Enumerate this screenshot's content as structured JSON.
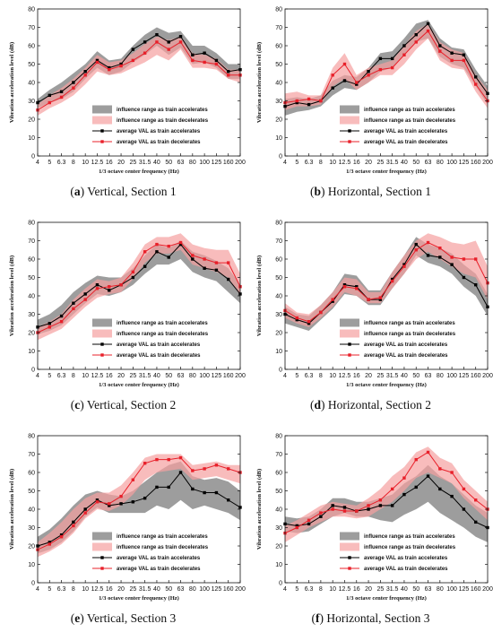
{
  "colors": {
    "accel_band": "#8c8c8c",
    "decel_band": "#f5a0a0",
    "accel_line": "#000000",
    "decel_line": "#e8202a"
  },
  "chart_data": [
    {
      "type": "line",
      "id": "a",
      "caption_letter": "a",
      "caption_text": ", Section 1",
      "caption_word": "Vertical",
      "xlabel": "1/3 octave center frequency (Hz)",
      "ylabel": "Vibration acceleration level (dB)",
      "ylim": [
        0,
        80
      ],
      "yticks": [
        0,
        10,
        20,
        30,
        40,
        50,
        60,
        70,
        80
      ],
      "categories": [
        "4",
        "5",
        "6.3",
        "8",
        "10",
        "12.5",
        "16",
        "20",
        "25",
        "31.5",
        "40",
        "50",
        "63",
        "80",
        "100",
        "125",
        "160",
        "200"
      ],
      "legend_position": "bottom-right",
      "series": [
        {
          "name": "influence range as train accelerates",
          "kind": "band",
          "lower": [
            26,
            29,
            31,
            35,
            42,
            48,
            44,
            46,
            51,
            55,
            60,
            55,
            59,
            50,
            51,
            48,
            42,
            42
          ],
          "upper": [
            31,
            36,
            40,
            45,
            50,
            57,
            52,
            53,
            60,
            66,
            70,
            67,
            68,
            60,
            60,
            56,
            50,
            50
          ]
        },
        {
          "name": "influence range as train decelerates",
          "kind": "band",
          "lower": [
            22,
            26,
            29,
            33,
            39,
            46,
            44,
            45,
            48,
            51,
            55,
            52,
            58,
            48,
            48,
            47,
            42,
            40
          ],
          "upper": [
            28,
            33,
            37,
            42,
            48,
            55,
            51,
            52,
            56,
            61,
            65,
            63,
            65,
            56,
            55,
            53,
            47,
            47
          ]
        },
        {
          "name": "average VAL as train accelerates",
          "kind": "line",
          "values": [
            29,
            33,
            35,
            40,
            46,
            52,
            48,
            50,
            58,
            62,
            66,
            62,
            65,
            55,
            56,
            52,
            46,
            47
          ]
        },
        {
          "name": "average VAL as train decelerates",
          "kind": "line",
          "values": [
            25,
            29,
            32,
            37,
            44,
            51,
            47,
            49,
            52,
            56,
            62,
            58,
            62,
            52,
            51,
            50,
            44,
            44
          ]
        }
      ]
    },
    {
      "type": "line",
      "id": "b",
      "caption_letter": "b",
      "caption_text": ", Section 1",
      "caption_word": "Horizontal",
      "xlabel": "1/3 octave center frequency (Hz)",
      "ylabel": "Vibration acceleration level (dB)",
      "ylim": [
        0,
        80
      ],
      "yticks": [
        0,
        10,
        20,
        30,
        40,
        50,
        60,
        70,
        80
      ],
      "categories": [
        "4",
        "5",
        "6.3",
        "8",
        "10",
        "12.5",
        "16",
        "20",
        "25",
        "31.5",
        "40",
        "50",
        "63",
        "80",
        "100",
        "125",
        "160",
        "200"
      ],
      "legend_position": "bottom-right",
      "series": [
        {
          "name": "influence range as train accelerates",
          "kind": "band",
          "lower": [
            22,
            24,
            25,
            27,
            33,
            37,
            36,
            40,
            46,
            48,
            55,
            62,
            64,
            54,
            50,
            48,
            38,
            28
          ],
          "upper": [
            31,
            32,
            31,
            33,
            41,
            44,
            43,
            48,
            56,
            57,
            64,
            72,
            74,
            64,
            59,
            58,
            47,
            38
          ]
        },
        {
          "name": "influence range as train decelerates",
          "kind": "band",
          "lower": [
            25,
            27,
            27,
            28,
            38,
            42,
            36,
            40,
            44,
            44,
            50,
            58,
            64,
            52,
            48,
            47,
            35,
            26
          ],
          "upper": [
            34,
            35,
            33,
            33,
            48,
            56,
            44,
            48,
            50,
            52,
            60,
            68,
            72,
            62,
            58,
            56,
            44,
            36
          ]
        },
        {
          "name": "average VAL as train accelerates",
          "kind": "line",
          "values": [
            27,
            29,
            28,
            30,
            37,
            41,
            39,
            46,
            53,
            53,
            60,
            66,
            72,
            60,
            56,
            55,
            43,
            34
          ]
        },
        {
          "name": "average VAL as train decelerates",
          "kind": "line",
          "values": [
            29,
            30,
            31,
            30,
            44,
            50,
            40,
            44,
            47,
            48,
            55,
            62,
            68,
            57,
            52,
            52,
            39,
            30
          ]
        }
      ]
    },
    {
      "type": "line",
      "id": "c",
      "caption_letter": "c",
      "caption_text": ", Section 2",
      "caption_word": "Vertical",
      "xlabel": "1/3 octave center frequency (Hz)",
      "ylabel": "Vibration acceleration level (dB)",
      "ylim": [
        0,
        80
      ],
      "yticks": [
        0,
        10,
        20,
        30,
        40,
        50,
        60,
        70,
        80
      ],
      "categories": [
        "4",
        "5",
        "6.3",
        "8",
        "10",
        "12.5",
        "16",
        "20",
        "25",
        "31.5",
        "40",
        "50",
        "63",
        "80",
        "100",
        "125",
        "160",
        "200"
      ],
      "legend_position": "bottom-right",
      "series": [
        {
          "name": "influence range as train accelerates",
          "kind": "band",
          "lower": [
            19,
            21,
            24,
            30,
            36,
            41,
            40,
            42,
            46,
            52,
            57,
            57,
            60,
            53,
            50,
            48,
            42,
            36
          ],
          "upper": [
            27,
            30,
            35,
            42,
            47,
            51,
            50,
            50,
            55,
            62,
            68,
            66,
            70,
            64,
            62,
            59,
            55,
            46
          ]
        },
        {
          "name": "influence range as train decelerates",
          "kind": "band",
          "lower": [
            16,
            19,
            22,
            28,
            34,
            39,
            41,
            42,
            49,
            58,
            63,
            63,
            65,
            57,
            55,
            53,
            50,
            40
          ],
          "upper": [
            23,
            26,
            30,
            38,
            44,
            49,
            48,
            50,
            58,
            68,
            72,
            72,
            74,
            68,
            66,
            65,
            65,
            52
          ]
        },
        {
          "name": "average VAL as train accelerates",
          "kind": "line",
          "values": [
            23,
            25,
            29,
            36,
            41,
            46,
            43,
            46,
            50,
            56,
            64,
            61,
            68,
            60,
            55,
            54,
            49,
            41
          ]
        },
        {
          "name": "average VAL as train decelerates",
          "kind": "line",
          "values": [
            20,
            23,
            26,
            33,
            38,
            44,
            45,
            46,
            53,
            64,
            68,
            67,
            69,
            62,
            60,
            58,
            58,
            45
          ]
        }
      ]
    },
    {
      "type": "line",
      "id": "d",
      "caption_letter": "d",
      "caption_text": ", Section 2",
      "caption_word": "Horizontal",
      "xlabel": "1/3 octave center frequency (Hz)",
      "ylabel": "Vibration acceleration level (dB)",
      "ylim": [
        0,
        80
      ],
      "yticks": [
        0,
        10,
        20,
        30,
        40,
        50,
        60,
        70,
        80
      ],
      "categories": [
        "4",
        "5",
        "6.3",
        "8",
        "10",
        "12.5",
        "16",
        "20",
        "25",
        "31.5",
        "40",
        "50",
        "63",
        "80",
        "100",
        "125",
        "160",
        "200"
      ],
      "legend_position": "bottom-right",
      "series": [
        {
          "name": "influence range as train accelerates",
          "kind": "band",
          "lower": [
            25,
            23,
            21,
            27,
            33,
            41,
            40,
            35,
            35,
            44,
            52,
            62,
            58,
            56,
            52,
            45,
            40,
            29
          ],
          "upper": [
            34,
            30,
            29,
            35,
            42,
            52,
            51,
            43,
            43,
            53,
            62,
            72,
            68,
            66,
            63,
            57,
            52,
            41
          ]
        },
        {
          "name": "influence range as train decelerates",
          "kind": "band",
          "lower": [
            28,
            25,
            23,
            28,
            34,
            42,
            40,
            36,
            36,
            44,
            52,
            60,
            64,
            60,
            56,
            52,
            50,
            38
          ],
          "upper": [
            36,
            31,
            30,
            35,
            42,
            50,
            49,
            42,
            42,
            53,
            62,
            70,
            74,
            72,
            69,
            68,
            70,
            56
          ]
        },
        {
          "name": "average VAL as train accelerates",
          "kind": "line",
          "values": [
            30,
            27,
            25,
            31,
            37,
            46,
            45,
            38,
            38,
            49,
            57,
            68,
            62,
            61,
            57,
            50,
            46,
            34
          ]
        },
        {
          "name": "average VAL as train decelerates",
          "kind": "line",
          "values": [
            32,
            28,
            26,
            31,
            38,
            45,
            44,
            38,
            39,
            48,
            56,
            65,
            69,
            66,
            61,
            60,
            60,
            47
          ]
        }
      ]
    },
    {
      "type": "line",
      "id": "e",
      "caption_letter": "e",
      "caption_text": ", Section 3",
      "caption_word": "Vertical",
      "xlabel": "1/3 octave center frequency (Hz)",
      "ylabel": "Vibration acceleration level (dB)",
      "ylim": [
        0,
        80
      ],
      "yticks": [
        0,
        10,
        20,
        30,
        40,
        50,
        60,
        70,
        80
      ],
      "categories": [
        "4",
        "5",
        "6.3",
        "8",
        "10",
        "12.5",
        "16",
        "20",
        "25",
        "31.5",
        "40",
        "50",
        "63",
        "80",
        "100",
        "125",
        "160",
        "200"
      ],
      "legend_position": "bottom-right",
      "series": [
        {
          "name": "influence range as train accelerates",
          "kind": "band",
          "lower": [
            16,
            18,
            22,
            28,
            36,
            41,
            38,
            38,
            38,
            38,
            42,
            40,
            45,
            40,
            42,
            40,
            38,
            34
          ],
          "upper": [
            25,
            29,
            35,
            42,
            48,
            50,
            48,
            47,
            50,
            55,
            60,
            64,
            66,
            58,
            56,
            57,
            55,
            50
          ]
        },
        {
          "name": "influence range as train decelerates",
          "kind": "band",
          "lower": [
            14,
            17,
            21,
            27,
            35,
            40,
            39,
            42,
            48,
            56,
            60,
            61,
            62,
            56,
            57,
            58,
            56,
            54
          ],
          "upper": [
            22,
            27,
            33,
            40,
            46,
            49,
            49,
            53,
            60,
            68,
            70,
            70,
            70,
            64,
            65,
            66,
            64,
            64
          ]
        },
        {
          "name": "average VAL as train accelerates",
          "kind": "line",
          "values": [
            20,
            22,
            26,
            33,
            40,
            45,
            42,
            43,
            44,
            46,
            52,
            52,
            60,
            51,
            49,
            49,
            45,
            41
          ]
        },
        {
          "name": "average VAL as train decelerates",
          "kind": "line",
          "values": [
            18,
            21,
            25,
            31,
            38,
            44,
            43,
            47,
            56,
            65,
            67,
            67,
            68,
            61,
            62,
            64,
            62,
            60
          ]
        }
      ]
    },
    {
      "type": "line",
      "id": "f",
      "caption_letter": "f",
      "caption_text": ", Section 3",
      "caption_word": "Horizontal",
      "xlabel": "1/3 octave center frequency (Hz)",
      "ylabel": "Vibration acceleration level (dB)",
      "ylim": [
        0,
        80
      ],
      "yticks": [
        0,
        10,
        20,
        30,
        40,
        50,
        60,
        70,
        80
      ],
      "categories": [
        "4",
        "5",
        "6.3",
        "8",
        "10",
        "12.5",
        "16",
        "20",
        "25",
        "31.5",
        "40",
        "50",
        "63",
        "80",
        "100",
        "125",
        "160",
        "200"
      ],
      "legend_position": "bottom-right",
      "series": [
        {
          "name": "influence range as train accelerates",
          "kind": "band",
          "lower": [
            28,
            27,
            28,
            32,
            36,
            38,
            36,
            36,
            34,
            33,
            37,
            40,
            44,
            38,
            34,
            30,
            25,
            22
          ],
          "upper": [
            36,
            35,
            36,
            40,
            46,
            46,
            44,
            44,
            46,
            48,
            54,
            58,
            64,
            58,
            54,
            48,
            42,
            38
          ]
        },
        {
          "name": "influence range as train decelerates",
          "kind": "band",
          "lower": [
            22,
            26,
            30,
            33,
            36,
            36,
            35,
            36,
            40,
            44,
            50,
            57,
            60,
            57,
            54,
            46,
            40,
            34
          ],
          "upper": [
            31,
            34,
            38,
            42,
            44,
            43,
            42,
            46,
            51,
            58,
            63,
            71,
            74,
            68,
            65,
            56,
            50,
            44
          ]
        },
        {
          "name": "average VAL as train accelerates",
          "kind": "line",
          "values": [
            32,
            31,
            32,
            36,
            42,
            41,
            39,
            40,
            42,
            42,
            48,
            52,
            58,
            51,
            47,
            40,
            33,
            30
          ]
        },
        {
          "name": "average VAL as train decelerates",
          "kind": "line",
          "values": [
            27,
            30,
            34,
            38,
            40,
            39,
            39,
            42,
            45,
            51,
            57,
            67,
            71,
            62,
            60,
            51,
            45,
            40
          ]
        }
      ]
    }
  ]
}
